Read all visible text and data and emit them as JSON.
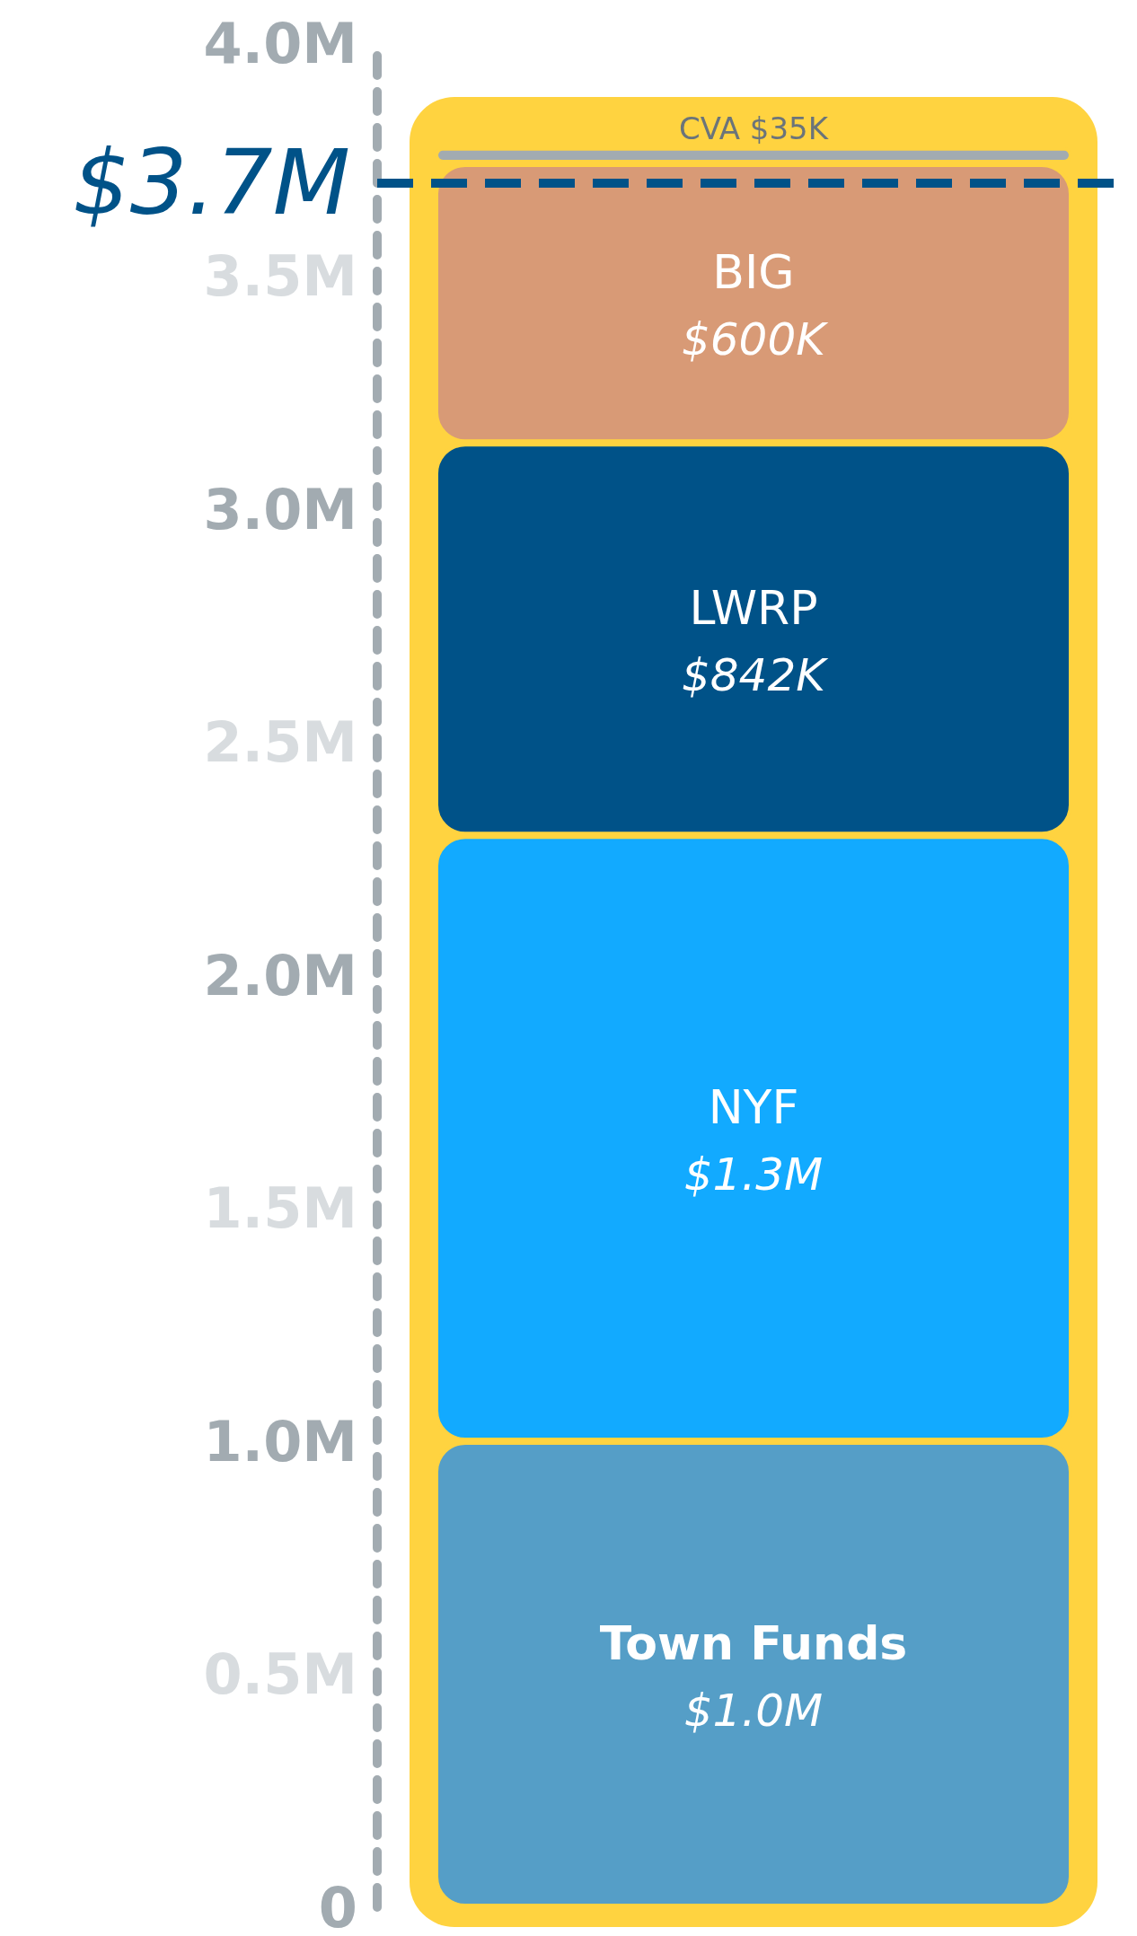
{
  "chart_data": {
    "type": "bar",
    "stacked": true,
    "categories": [
      null
    ],
    "series": [
      {
        "name": "Town Funds",
        "color": "#559ec7",
        "values": [
          1000000
        ],
        "value_labels": [
          "$1.0M"
        ]
      },
      {
        "name": "NYF",
        "color": "#12aaff",
        "values": [
          1300000
        ],
        "value_labels": [
          "$1.3M"
        ]
      },
      {
        "name": "LWRP",
        "color": "#005288",
        "values": [
          842000
        ],
        "value_labels": [
          "$842K"
        ]
      },
      {
        "name": "BIG",
        "color": "#d89a76",
        "values": [
          600000
        ],
        "value_labels": [
          "$600K"
        ]
      },
      {
        "name": "CVA",
        "color": "#a2abb1",
        "values": [
          35000
        ],
        "value_labels": [
          "$35K"
        ]
      }
    ],
    "ylim": [
      0,
      4000000
    ],
    "yticks": [
      0,
      {
        "value": 500000,
        "label": "0.5M"
      },
      {
        "value": 1000000,
        "label": "1.0M"
      },
      {
        "value": 1500000,
        "label": "1.5M"
      },
      {
        "value": 2000000,
        "label": "2.0M"
      },
      {
        "value": 2500000,
        "label": "2.5M"
      },
      {
        "value": 3000000,
        "label": "3.0M"
      },
      {
        "value": 3500000,
        "label": "3.5M"
      },
      {
        "value": 4000000,
        "label": "4.0M"
      }
    ],
    "ref_lines": [
      {
        "axis": "y",
        "value": 3700000,
        "label": "$3.7M",
        "color": "#005288",
        "line_style": "dashed"
      }
    ],
    "grid": false,
    "legend": false,
    "tick_labels": "y"
  }
}
